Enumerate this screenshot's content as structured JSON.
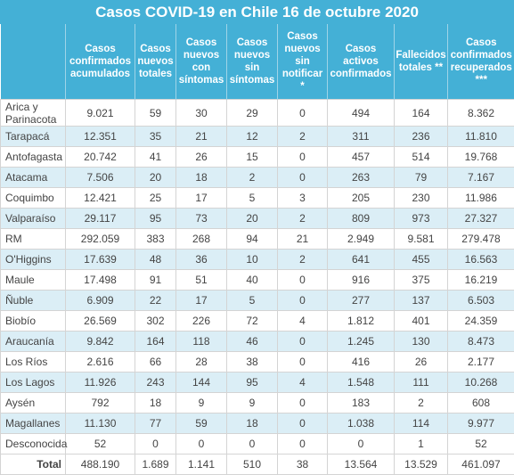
{
  "title": "Casos COVID-19 en Chile 16 de octubre 2020",
  "headers": [
    "",
    "Casos confirmados acumulados",
    "Casos nuevos totales",
    "Casos nuevos con síntomas",
    "Casos nuevos sin síntomas",
    "Casos nuevos sin notificar *",
    "Casos activos confirmados",
    "Fallecidos totales **",
    "Casos confirmados recuperados ***"
  ],
  "rows": [
    [
      "Arica y Parinacota",
      "9.021",
      "59",
      "30",
      "29",
      "0",
      "494",
      "164",
      "8.362"
    ],
    [
      "Tarapacá",
      "12.351",
      "35",
      "21",
      "12",
      "2",
      "311",
      "236",
      "11.810"
    ],
    [
      "Antofagasta",
      "20.742",
      "41",
      "26",
      "15",
      "0",
      "457",
      "514",
      "19.768"
    ],
    [
      "Atacama",
      "7.506",
      "20",
      "18",
      "2",
      "0",
      "263",
      "79",
      "7.167"
    ],
    [
      "Coquimbo",
      "12.421",
      "25",
      "17",
      "5",
      "3",
      "205",
      "230",
      "11.986"
    ],
    [
      "Valparaíso",
      "29.117",
      "95",
      "73",
      "20",
      "2",
      "809",
      "973",
      "27.327"
    ],
    [
      "RM",
      "292.059",
      "383",
      "268",
      "94",
      "21",
      "2.949",
      "9.581",
      "279.478"
    ],
    [
      "O'Higgins",
      "17.639",
      "48",
      "36",
      "10",
      "2",
      "641",
      "455",
      "16.563"
    ],
    [
      "Maule",
      "17.498",
      "91",
      "51",
      "40",
      "0",
      "916",
      "375",
      "16.219"
    ],
    [
      "Ñuble",
      "6.909",
      "22",
      "17",
      "5",
      "0",
      "277",
      "137",
      "6.503"
    ],
    [
      "Biobío",
      "26.569",
      "302",
      "226",
      "72",
      "4",
      "1.812",
      "401",
      "24.359"
    ],
    [
      "Araucanía",
      "9.842",
      "164",
      "118",
      "46",
      "0",
      "1.245",
      "130",
      "8.473"
    ],
    [
      "Los Ríos",
      "2.616",
      "66",
      "28",
      "38",
      "0",
      "416",
      "26",
      "2.177"
    ],
    [
      "Los Lagos",
      "11.926",
      "243",
      "144",
      "95",
      "4",
      "1.548",
      "111",
      "10.268"
    ],
    [
      "Aysén",
      "792",
      "18",
      "9",
      "9",
      "0",
      "183",
      "2",
      "608"
    ],
    [
      "Magallanes",
      "11.130",
      "77",
      "59",
      "18",
      "0",
      "1.038",
      "114",
      "9.977"
    ],
    [
      "Desconocida",
      "52",
      "0",
      "0",
      "0",
      "0",
      "0",
      "1",
      "52"
    ]
  ],
  "total": [
    "Total",
    "488.190",
    "1.689",
    "1.141",
    "510",
    "38",
    "13.564",
    "13.529",
    "461.097"
  ],
  "colors": {
    "header_bg": "#44b0d6",
    "stripe": "#dbeef6"
  }
}
